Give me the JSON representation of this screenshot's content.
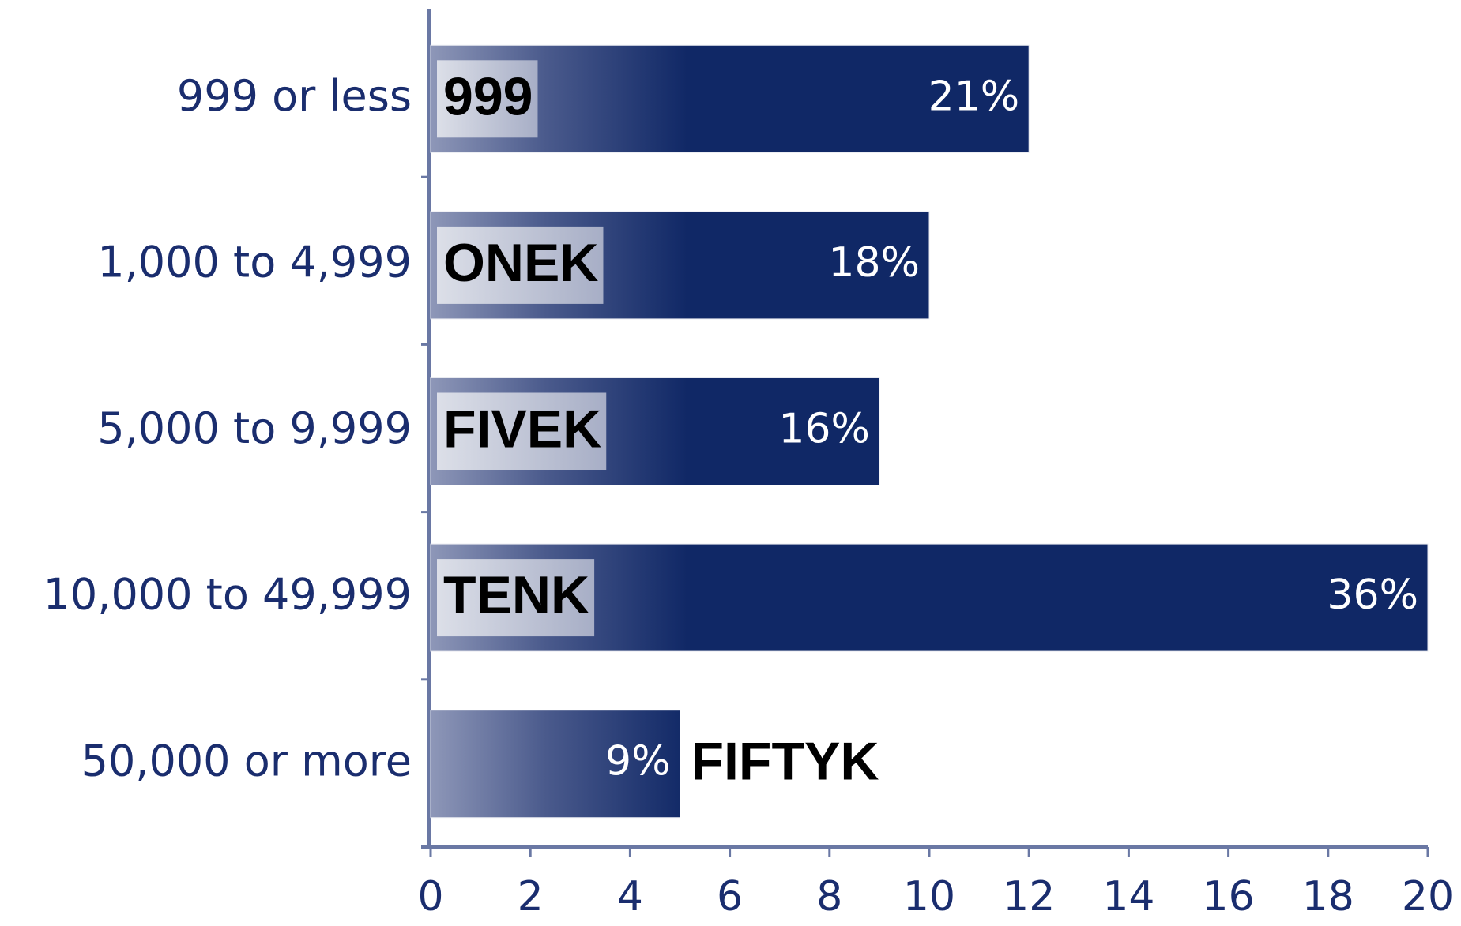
{
  "chart_data": {
    "type": "bar",
    "orientation": "horizontal",
    "categories": [
      "999 or less",
      "1,000 to 4,999",
      "5,000 to 9,999",
      "10,000 to 49,999",
      "50,000 or more"
    ],
    "values": [
      12,
      10,
      9,
      20,
      5
    ],
    "percent_labels": [
      "21%",
      "18%",
      "16%",
      "36%",
      "9%"
    ],
    "box_labels": [
      "999",
      "ONEK",
      "FIVEK",
      "TENK",
      "FIFTYK"
    ],
    "color": "#102866",
    "xlim": [
      0,
      20
    ],
    "xticks": [
      0,
      2,
      4,
      6,
      8,
      10,
      12,
      14,
      16,
      18,
      20
    ]
  }
}
